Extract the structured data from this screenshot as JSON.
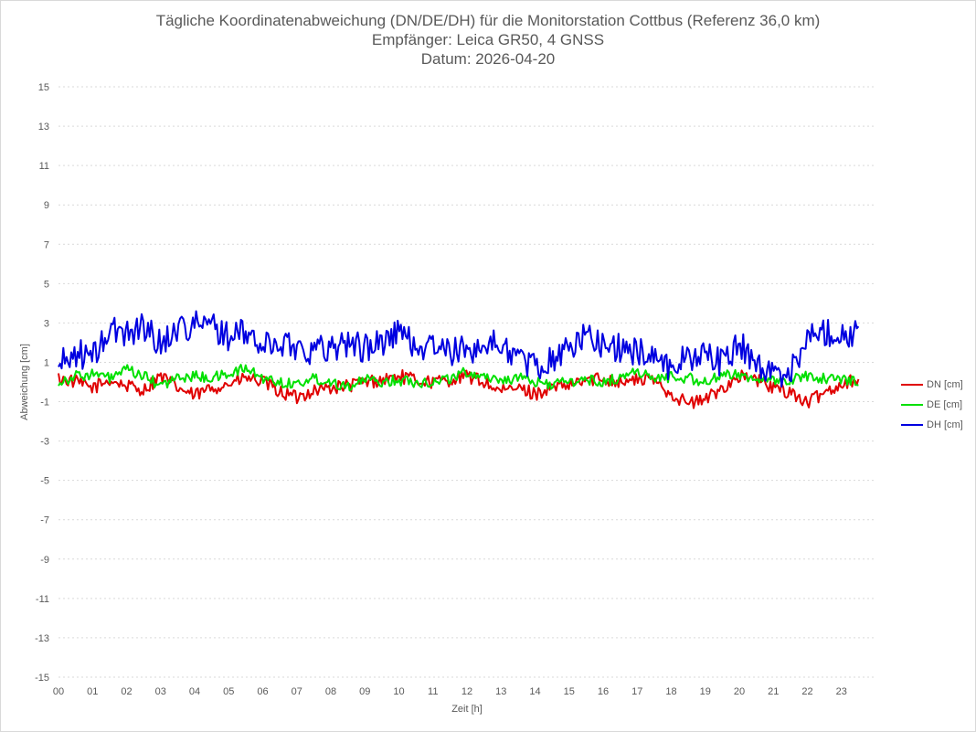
{
  "chart_data": {
    "type": "line",
    "title": "Tägliche Koordinatenabweichung (DN/DE/DH) für die Monitorstation Cottbus (Referenz 36,0 km)",
    "subtitle": [
      "Empfänger: Leica GR50, 4 GNSS",
      "Datum: 2026-04-20"
    ],
    "xlabel": "Zeit [h]",
    "ylabel": "Abweichung [cm]",
    "xlim": [
      0,
      24
    ],
    "ylim": [
      -15,
      15
    ],
    "x_ticks": [
      "00",
      "01",
      "02",
      "03",
      "04",
      "05",
      "06",
      "07",
      "08",
      "09",
      "10",
      "11",
      "12",
      "13",
      "14",
      "15",
      "16",
      "17",
      "18",
      "19",
      "20",
      "21",
      "22",
      "23"
    ],
    "y_ticks": [
      15,
      13,
      11,
      9,
      7,
      5,
      3,
      1,
      -1,
      -3,
      -5,
      -7,
      -9,
      -11,
      -13,
      -15
    ],
    "grid": "horizontal dotted",
    "legend_position": "right",
    "series": [
      {
        "name": "DN [cm]",
        "color": "#e00000",
        "x": [
          0,
          0.5,
          1,
          1.5,
          2,
          2.5,
          3,
          3.5,
          4,
          4.5,
          5,
          5.5,
          6,
          6.5,
          7,
          7.5,
          8,
          8.5,
          9,
          9.5,
          10,
          10.5,
          11,
          11.5,
          12,
          12.5,
          13,
          13.5,
          14,
          14.5,
          15,
          15.5,
          16,
          16.5,
          17,
          17.5,
          18,
          18.5,
          19,
          19.5,
          20,
          20.5,
          21,
          21.5,
          22,
          22.5,
          23,
          23.5
        ],
        "values": [
          0.2,
          0.0,
          -0.3,
          0.1,
          -0.2,
          -0.4,
          0.3,
          -0.3,
          -0.7,
          -0.3,
          -0.1,
          0.2,
          0.0,
          -0.5,
          -0.8,
          -0.4,
          -0.3,
          -0.2,
          0.0,
          0.1,
          0.3,
          0.1,
          0.0,
          0.1,
          0.3,
          0.0,
          -0.5,
          -0.3,
          -0.6,
          -0.3,
          -0.2,
          0.1,
          0.2,
          0.0,
          0.1,
          0.1,
          -0.6,
          -1.1,
          -0.9,
          -0.3,
          0.3,
          0.1,
          -0.3,
          -0.5,
          -1.1,
          -0.5,
          -0.1,
          0.2
        ]
      },
      {
        "name": "DE [cm]",
        "color": "#00e000",
        "x": [
          0,
          0.5,
          1,
          1.5,
          2,
          2.5,
          3,
          3.5,
          4,
          4.5,
          5,
          5.5,
          6,
          6.5,
          7,
          7.5,
          8,
          8.5,
          9,
          9.5,
          10,
          10.5,
          11,
          11.5,
          12,
          12.5,
          13,
          13.5,
          14,
          14.5,
          15,
          15.5,
          16,
          16.5,
          17,
          17.5,
          18,
          18.5,
          19,
          19.5,
          20,
          20.5,
          21,
          21.5,
          22,
          22.5,
          23,
          23.5
        ],
        "values": [
          0.0,
          0.3,
          0.4,
          0.2,
          0.6,
          0.3,
          -0.2,
          0.2,
          0.3,
          0.2,
          0.4,
          0.7,
          0.2,
          0.0,
          -0.1,
          0.2,
          0.0,
          -0.2,
          0.1,
          0.0,
          0.1,
          0.0,
          0.0,
          0.2,
          0.5,
          0.3,
          0.1,
          0.2,
          0.0,
          -0.1,
          0.0,
          0.1,
          0.0,
          0.2,
          0.6,
          0.1,
          0.3,
          0.2,
          0.0,
          0.3,
          0.4,
          0.2,
          0.0,
          0.1,
          0.3,
          0.2,
          0.1,
          0.1
        ]
      },
      {
        "name": "DH [cm]",
        "color": "#0000e0",
        "x": [
          0,
          0.5,
          1,
          1.5,
          2,
          2.5,
          3,
          3.5,
          4,
          4.5,
          5,
          5.5,
          6,
          6.5,
          7,
          7.5,
          8,
          8.5,
          9,
          9.5,
          10,
          10.5,
          11,
          11.5,
          12,
          12.5,
          13,
          13.5,
          14,
          14.5,
          15,
          15.5,
          16,
          16.5,
          17,
          17.5,
          18,
          18.5,
          19,
          19.5,
          20,
          20.5,
          21,
          21.5,
          22,
          22.5,
          23,
          23.5
        ],
        "values": [
          0.8,
          1.5,
          1.2,
          2.6,
          2.5,
          2.9,
          1.9,
          2.8,
          2.9,
          2.9,
          2.3,
          2.5,
          1.8,
          2.0,
          1.8,
          1.6,
          1.8,
          2.0,
          1.7,
          2.0,
          2.6,
          1.8,
          1.8,
          1.5,
          1.6,
          1.9,
          1.9,
          1.3,
          0.7,
          1.2,
          1.7,
          2.4,
          1.9,
          1.7,
          1.5,
          1.4,
          0.7,
          1.3,
          1.4,
          1.0,
          1.9,
          1.0,
          0.3,
          0.6,
          2.2,
          2.6,
          2.4,
          2.5
        ]
      }
    ]
  }
}
